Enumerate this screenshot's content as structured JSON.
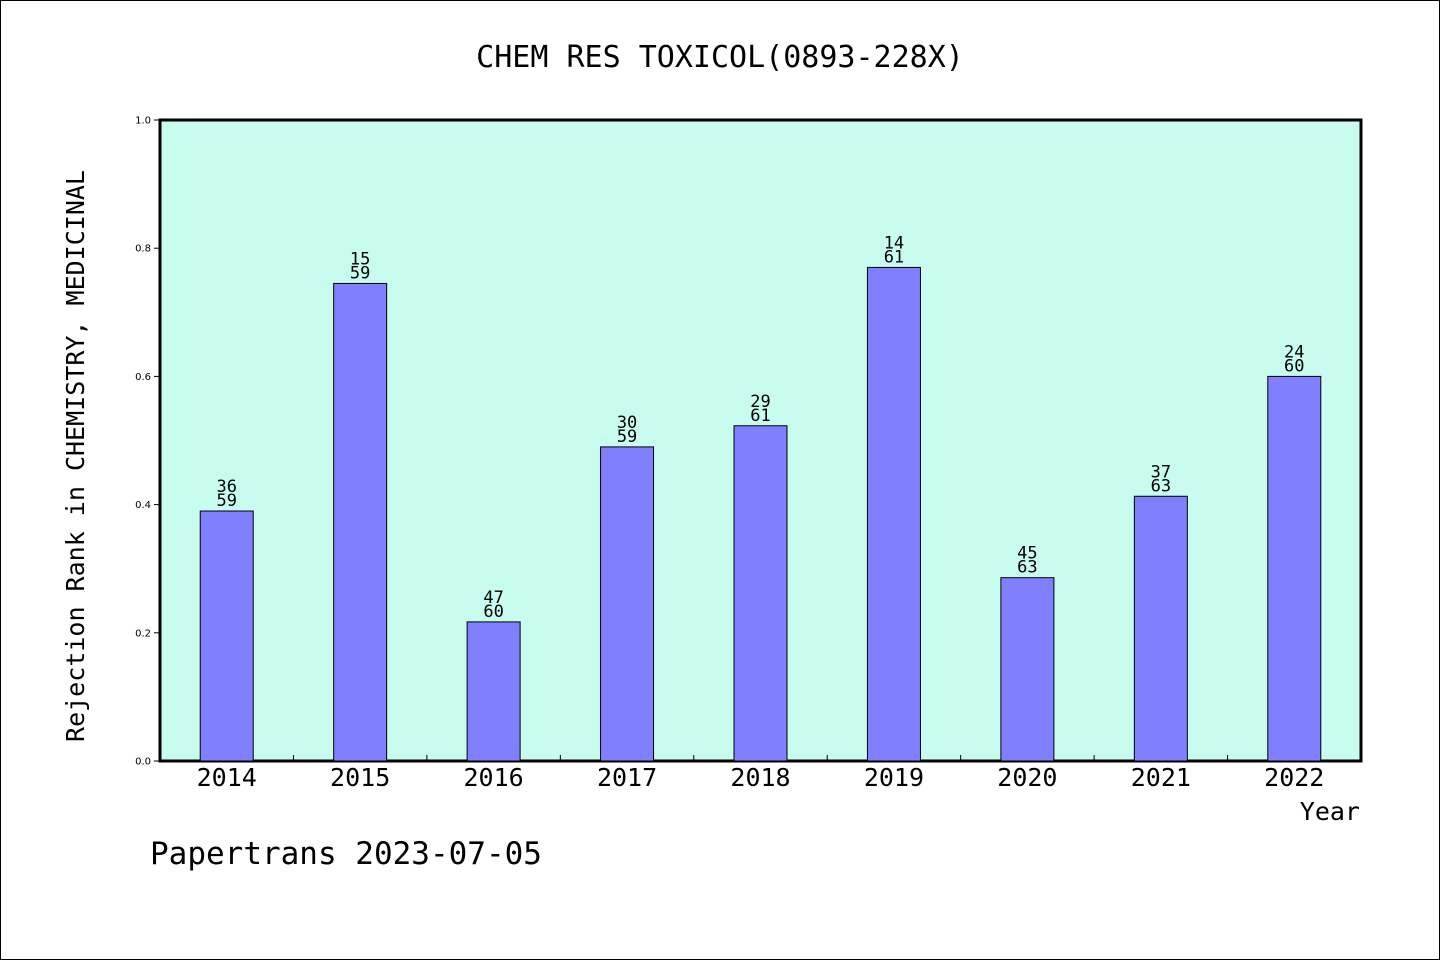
{
  "chart_data": {
    "type": "bar",
    "title": "CHEM RES TOXICOL(0893-228X)",
    "ylabel": "Rejection Rank in CHEMISTRY, MEDICINAL",
    "xlabel": "Year",
    "ylim": [
      0,
      1.0
    ],
    "yticks": [
      "0.0",
      "0.2",
      "0.4",
      "0.6",
      "0.8",
      "1.0"
    ],
    "grid": false,
    "categories": [
      "2014",
      "2015",
      "2016",
      "2017",
      "2018",
      "2019",
      "2020",
      "2021",
      "2022"
    ],
    "values": [
      0.39,
      0.745,
      0.217,
      0.49,
      0.523,
      0.77,
      0.286,
      0.413,
      0.6
    ],
    "labels_top": [
      "36",
      "15",
      "47",
      "30",
      "29",
      "14",
      "45",
      "37",
      "24"
    ],
    "labels_bottom": [
      "59",
      "59",
      "60",
      "59",
      "61",
      "61",
      "63",
      "63",
      "60"
    ],
    "colors": {
      "plot_background": "#c8fcee",
      "bar_fill": "#8080ff",
      "bar_stroke": "#000000"
    }
  },
  "footer": {
    "credit": "Papertrans 2023-07-05"
  }
}
